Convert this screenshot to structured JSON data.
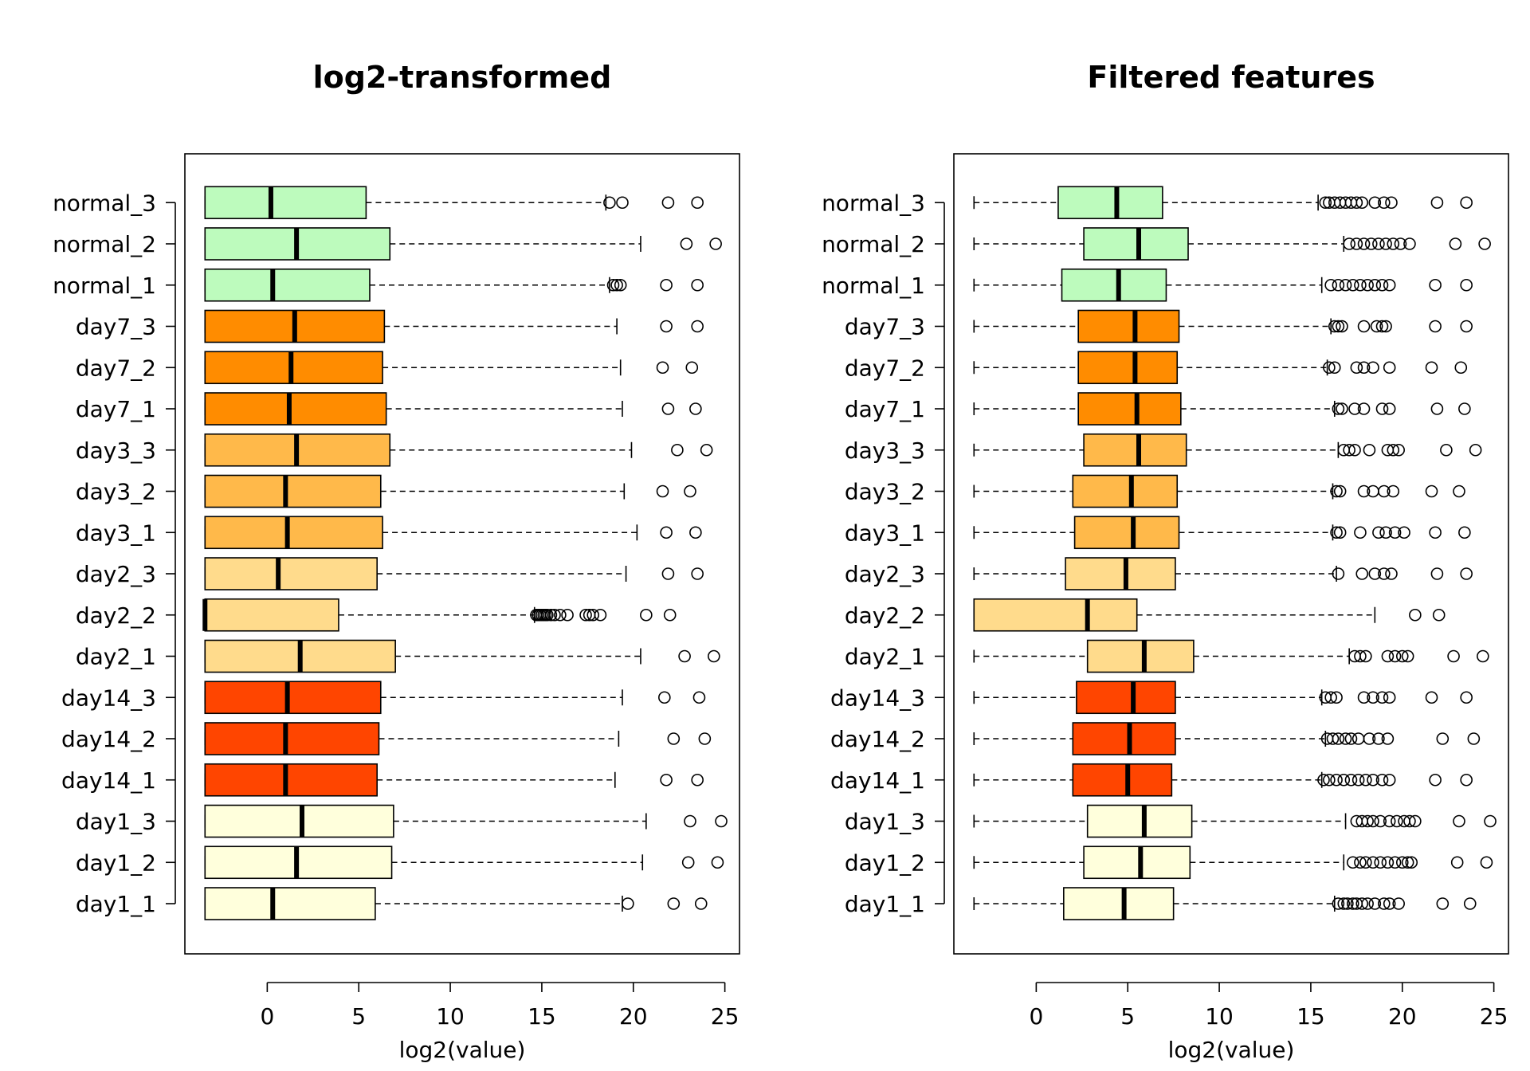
{
  "colors": {
    "normal": "#bdfbbd",
    "day7": "#ff8c00",
    "day3": "#ffb94a",
    "day2": "#ffdb8c",
    "day14": "#ff4500",
    "day1": "#ffffdc"
  },
  "chart_data": [
    {
      "type": "boxplot",
      "orientation": "horizontal",
      "title": "log2-transformed",
      "xlabel": "log2(value)",
      "xlim": [
        -4.5,
        25.8
      ],
      "xticks": [
        0,
        5,
        10,
        15,
        20,
        25
      ],
      "categories": [
        "day1_1",
        "day1_2",
        "day1_3",
        "day14_1",
        "day14_2",
        "day14_3",
        "day2_1",
        "day2_2",
        "day2_3",
        "day3_1",
        "day3_2",
        "day3_3",
        "day7_1",
        "day7_2",
        "day7_3",
        "normal_1",
        "normal_2",
        "normal_3"
      ],
      "groups": [
        "day1",
        "day1",
        "day1",
        "day14",
        "day14",
        "day14",
        "day2",
        "day2",
        "day2",
        "day3",
        "day3",
        "day3",
        "day7",
        "day7",
        "day7",
        "normal",
        "normal",
        "normal"
      ],
      "boxes": [
        {
          "min": -3.4,
          "q1": -3.4,
          "median": 0.3,
          "q3": 5.9,
          "max": 19.4,
          "outliers": [
            19.7,
            22.2,
            23.7
          ]
        },
        {
          "min": -3.4,
          "q1": -3.4,
          "median": 1.6,
          "q3": 6.8,
          "max": 20.5,
          "outliers": [
            23.0,
            24.6
          ]
        },
        {
          "min": -3.4,
          "q1": -3.4,
          "median": 1.9,
          "q3": 6.9,
          "max": 20.7,
          "outliers": [
            23.1,
            24.8
          ]
        },
        {
          "min": -3.4,
          "q1": -3.4,
          "median": 1.0,
          "q3": 6.0,
          "max": 19.0,
          "outliers": [
            21.8,
            23.5
          ]
        },
        {
          "min": -3.4,
          "q1": -3.4,
          "median": 1.0,
          "q3": 6.1,
          "max": 19.2,
          "outliers": [
            22.2,
            23.9
          ]
        },
        {
          "min": -3.4,
          "q1": -3.4,
          "median": 1.1,
          "q3": 6.2,
          "max": 19.4,
          "outliers": [
            21.7,
            23.6
          ]
        },
        {
          "min": -3.4,
          "q1": -3.4,
          "median": 1.8,
          "q3": 7.0,
          "max": 20.4,
          "outliers": [
            22.8,
            24.4
          ]
        },
        {
          "min": -3.4,
          "q1": -3.4,
          "median": -3.4,
          "q3": 3.9,
          "max": 14.6,
          "outliers": [
            14.7,
            14.8,
            14.9,
            15.0,
            15.1,
            15.2,
            15.3,
            15.5,
            15.7,
            16.0,
            16.4,
            17.4,
            17.6,
            17.8,
            18.2,
            20.7,
            22.0
          ]
        },
        {
          "min": -3.4,
          "q1": -3.4,
          "median": 0.6,
          "q3": 6.0,
          "max": 19.6,
          "outliers": [
            21.9,
            23.5
          ]
        },
        {
          "min": -3.4,
          "q1": -3.4,
          "median": 1.1,
          "q3": 6.3,
          "max": 20.2,
          "outliers": [
            21.8,
            23.4
          ]
        },
        {
          "min": -3.4,
          "q1": -3.4,
          "median": 1.0,
          "q3": 6.2,
          "max": 19.5,
          "outliers": [
            21.6,
            23.1
          ]
        },
        {
          "min": -3.4,
          "q1": -3.4,
          "median": 1.6,
          "q3": 6.7,
          "max": 19.9,
          "outliers": [
            22.4,
            24.0
          ]
        },
        {
          "min": -3.4,
          "q1": -3.4,
          "median": 1.2,
          "q3": 6.5,
          "max": 19.4,
          "outliers": [
            21.9,
            23.4
          ]
        },
        {
          "min": -3.4,
          "q1": -3.4,
          "median": 1.3,
          "q3": 6.3,
          "max": 19.3,
          "outliers": [
            21.6,
            23.2
          ]
        },
        {
          "min": -3.4,
          "q1": -3.4,
          "median": 1.5,
          "q3": 6.4,
          "max": 19.1,
          "outliers": [
            21.8,
            23.5
          ]
        },
        {
          "min": -3.4,
          "q1": -3.4,
          "median": 0.3,
          "q3": 5.6,
          "max": 18.7,
          "outliers": [
            18.9,
            19.1,
            19.3,
            21.8,
            23.5
          ]
        },
        {
          "min": -3.4,
          "q1": -3.4,
          "median": 1.6,
          "q3": 6.7,
          "max": 20.4,
          "outliers": [
            22.9,
            24.5
          ]
        },
        {
          "min": -3.4,
          "q1": -3.4,
          "median": 0.2,
          "q3": 5.4,
          "max": 18.5,
          "outliers": [
            18.7,
            19.4,
            21.9,
            23.5
          ]
        }
      ]
    },
    {
      "type": "boxplot",
      "orientation": "horizontal",
      "title": "Filtered features",
      "xlabel": "log2(value)",
      "xlim": [
        -4.5,
        25.8
      ],
      "xticks": [
        0,
        5,
        10,
        15,
        20,
        25
      ],
      "categories": [
        "day1_1",
        "day1_2",
        "day1_3",
        "day14_1",
        "day14_2",
        "day14_3",
        "day2_1",
        "day2_2",
        "day2_3",
        "day3_1",
        "day3_2",
        "day3_3",
        "day7_1",
        "day7_2",
        "day7_3",
        "normal_1",
        "normal_2",
        "normal_3"
      ],
      "groups": [
        "day1",
        "day1",
        "day1",
        "day14",
        "day14",
        "day14",
        "day2",
        "day2",
        "day2",
        "day3",
        "day3",
        "day3",
        "day7",
        "day7",
        "day7",
        "normal",
        "normal",
        "normal"
      ],
      "boxes": [
        {
          "min": -3.4,
          "q1": 1.5,
          "median": 4.8,
          "q3": 7.5,
          "max": 16.3,
          "outliers": [
            16.5,
            16.8,
            17.0,
            17.3,
            17.5,
            17.8,
            18.1,
            18.5,
            19.0,
            19.3,
            19.8,
            22.2,
            23.7
          ]
        },
        {
          "min": -3.4,
          "q1": 2.6,
          "median": 5.7,
          "q3": 8.4,
          "max": 16.8,
          "outliers": [
            17.3,
            17.7,
            18.0,
            18.4,
            18.8,
            19.2,
            19.6,
            20.0,
            20.3,
            20.5,
            23.0,
            24.6
          ]
        },
        {
          "min": -3.4,
          "q1": 2.8,
          "median": 5.9,
          "q3": 8.5,
          "max": 16.9,
          "outliers": [
            17.5,
            17.8,
            18.1,
            18.4,
            18.8,
            19.3,
            19.7,
            20.1,
            20.4,
            20.7,
            23.1,
            24.8
          ]
        },
        {
          "min": -3.4,
          "q1": 2.0,
          "median": 5.0,
          "q3": 7.4,
          "max": 15.6,
          "outliers": [
            15.7,
            16.0,
            16.4,
            16.8,
            17.2,
            17.6,
            18.0,
            18.4,
            18.9,
            19.3,
            21.8,
            23.5
          ]
        },
        {
          "min": -3.4,
          "q1": 2.0,
          "median": 5.1,
          "q3": 7.6,
          "max": 15.8,
          "outliers": [
            15.9,
            16.2,
            16.5,
            16.9,
            17.2,
            17.6,
            18.2,
            18.7,
            19.2,
            22.2,
            23.9
          ]
        },
        {
          "min": -3.4,
          "q1": 2.2,
          "median": 5.3,
          "q3": 7.6,
          "max": 15.6,
          "outliers": [
            15.8,
            16.1,
            16.4,
            17.9,
            18.4,
            18.9,
            19.3,
            21.6,
            23.5
          ]
        },
        {
          "min": -3.4,
          "q1": 2.8,
          "median": 5.9,
          "q3": 8.6,
          "max": 17.1,
          "outliers": [
            17.4,
            17.7,
            18.0,
            19.2,
            19.6,
            20.0,
            20.3,
            22.8,
            24.4
          ]
        },
        {
          "min": -3.4,
          "q1": -3.4,
          "median": 2.8,
          "q3": 5.5,
          "max": 18.5,
          "outliers": [
            20.7,
            22.0
          ]
        },
        {
          "min": -3.4,
          "q1": 1.6,
          "median": 4.9,
          "q3": 7.6,
          "max": 16.4,
          "outliers": [
            16.5,
            17.8,
            18.5,
            19.0,
            19.4,
            21.9,
            23.5
          ]
        },
        {
          "min": -3.4,
          "q1": 2.1,
          "median": 5.3,
          "q3": 7.8,
          "max": 16.2,
          "outliers": [
            16.4,
            16.6,
            17.7,
            18.7,
            19.1,
            19.6,
            20.1,
            21.8,
            23.4
          ]
        },
        {
          "min": -3.4,
          "q1": 2.0,
          "median": 5.2,
          "q3": 7.7,
          "max": 16.2,
          "outliers": [
            16.4,
            16.6,
            17.9,
            18.4,
            19.0,
            19.5,
            21.6,
            23.1
          ]
        },
        {
          "min": -3.4,
          "q1": 2.6,
          "median": 5.6,
          "q3": 8.2,
          "max": 16.5,
          "outliers": [
            16.8,
            17.1,
            17.4,
            18.2,
            19.2,
            19.5,
            19.8,
            22.4,
            24.0
          ]
        },
        {
          "min": -3.4,
          "q1": 2.3,
          "median": 5.5,
          "q3": 7.9,
          "max": 16.3,
          "outliers": [
            16.5,
            16.7,
            17.4,
            17.9,
            18.9,
            19.3,
            21.9,
            23.4
          ]
        },
        {
          "min": -3.4,
          "q1": 2.3,
          "median": 5.4,
          "q3": 7.7,
          "max": 15.9,
          "outliers": [
            16.0,
            16.3,
            17.5,
            17.9,
            18.4,
            19.3,
            21.6,
            23.2
          ]
        },
        {
          "min": -3.4,
          "q1": 2.3,
          "median": 5.4,
          "q3": 7.8,
          "max": 16.1,
          "outliers": [
            16.3,
            16.5,
            16.7,
            17.9,
            18.6,
            18.9,
            19.1,
            21.8,
            23.5
          ]
        },
        {
          "min": -3.4,
          "q1": 1.4,
          "median": 4.5,
          "q3": 7.1,
          "max": 15.6,
          "outliers": [
            16.1,
            16.5,
            16.9,
            17.3,
            17.7,
            18.1,
            18.5,
            18.9,
            19.3,
            21.8,
            23.5
          ]
        },
        {
          "min": -3.4,
          "q1": 2.6,
          "median": 5.6,
          "q3": 8.3,
          "max": 16.8,
          "outliers": [
            17.1,
            17.5,
            17.9,
            18.3,
            18.7,
            19.1,
            19.5,
            19.9,
            20.4,
            22.9,
            24.5
          ]
        },
        {
          "min": -3.4,
          "q1": 1.2,
          "median": 4.4,
          "q3": 6.9,
          "max": 15.4,
          "outliers": [
            15.8,
            16.0,
            16.3,
            16.6,
            16.9,
            17.2,
            17.5,
            17.8,
            18.5,
            19.0,
            19.4,
            21.9,
            23.5
          ]
        }
      ]
    }
  ]
}
